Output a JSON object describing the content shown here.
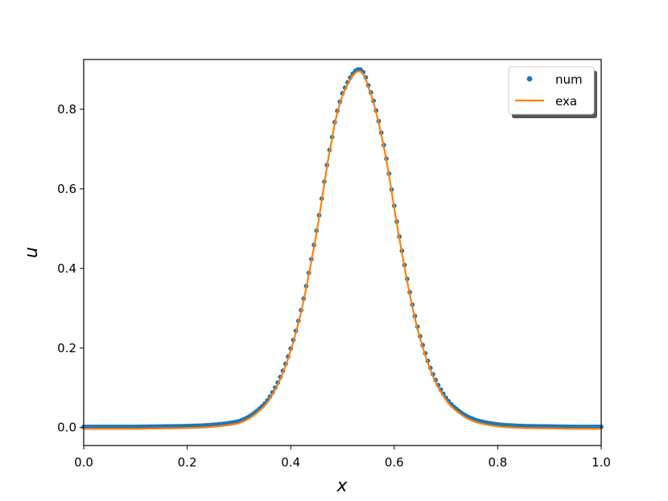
{
  "chart_data": {
    "type": "line",
    "title": "",
    "xlabel": "x",
    "ylabel": "u",
    "xlim": [
      0.0,
      1.0
    ],
    "ylim": [
      -0.045,
      0.925
    ],
    "xticks": [
      "0.0",
      "0.2",
      "0.4",
      "0.6",
      "0.8",
      "1.0"
    ],
    "yticks": [
      "0.0",
      "0.2",
      "0.4",
      "0.6",
      "0.8"
    ],
    "grid": false,
    "legend_position": "top-right",
    "x": [
      0.0,
      0.05,
      0.1,
      0.15,
      0.2,
      0.25,
      0.3,
      0.33,
      0.36,
      0.39,
      0.42,
      0.45,
      0.48,
      0.5,
      0.53,
      0.55,
      0.58,
      0.61,
      0.64,
      0.67,
      0.7,
      0.73,
      0.76,
      0.8,
      0.85,
      0.9,
      0.95,
      1.0
    ],
    "series": [
      {
        "name": "num",
        "style": "markers",
        "color": "#1f77b4",
        "values": [
          0.002,
          0.002,
          0.002,
          0.003,
          0.004,
          0.007,
          0.016,
          0.037,
          0.078,
          0.16,
          0.295,
          0.495,
          0.73,
          0.84,
          0.9,
          0.86,
          0.71,
          0.48,
          0.28,
          0.15,
          0.075,
          0.037,
          0.018,
          0.008,
          0.004,
          0.003,
          0.002,
          0.002
        ]
      },
      {
        "name": "exa",
        "style": "line",
        "color": "#ff7f0e",
        "values": [
          -0.003,
          -0.003,
          -0.003,
          -0.002,
          -0.001,
          0.002,
          0.011,
          0.032,
          0.073,
          0.155,
          0.29,
          0.49,
          0.725,
          0.835,
          0.895,
          0.855,
          0.705,
          0.475,
          0.275,
          0.145,
          0.07,
          0.032,
          0.013,
          0.003,
          -0.001,
          -0.002,
          -0.003,
          -0.003
        ]
      }
    ]
  }
}
